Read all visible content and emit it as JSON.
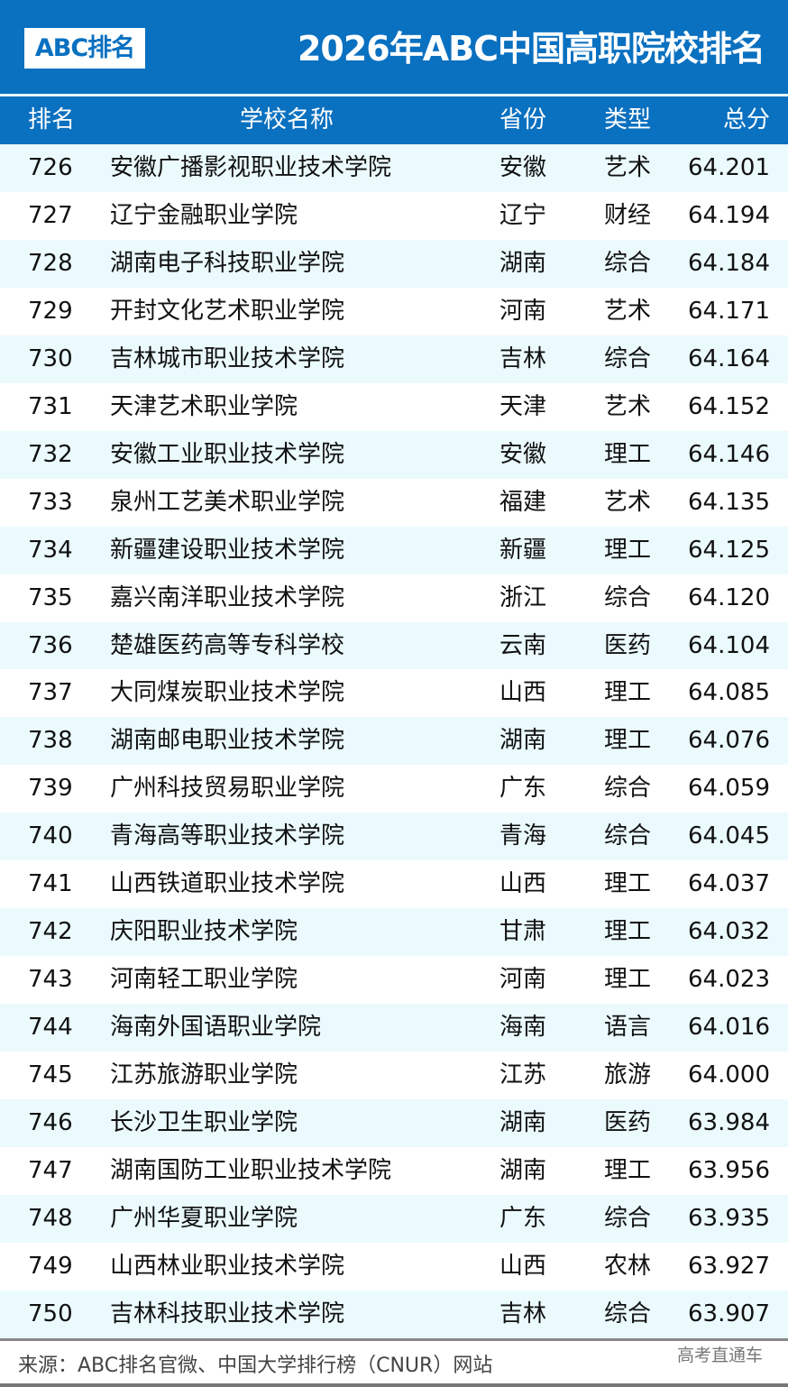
{
  "header": {
    "logo": "ABC排名",
    "title": "2026年ABC中国高职院校排名"
  },
  "columns": [
    "排名",
    "学校名称",
    "省份",
    "类型",
    "总分"
  ],
  "rows": [
    [
      "726",
      "安徽广播影视职业技术学院",
      "安徽",
      "艺术",
      "64.201"
    ],
    [
      "727",
      "辽宁金融职业学院",
      "辽宁",
      "财经",
      "64.194"
    ],
    [
      "728",
      "湖南电子科技职业学院",
      "湖南",
      "综合",
      "64.184"
    ],
    [
      "729",
      "开封文化艺术职业学院",
      "河南",
      "艺术",
      "64.171"
    ],
    [
      "730",
      "吉林城市职业技术学院",
      "吉林",
      "综合",
      "64.164"
    ],
    [
      "731",
      "天津艺术职业学院",
      "天津",
      "艺术",
      "64.152"
    ],
    [
      "732",
      "安徽工业职业技术学院",
      "安徽",
      "理工",
      "64.146"
    ],
    [
      "733",
      "泉州工艺美术职业学院",
      "福建",
      "艺术",
      "64.135"
    ],
    [
      "734",
      "新疆建设职业技术学院",
      "新疆",
      "理工",
      "64.125"
    ],
    [
      "735",
      "嘉兴南洋职业技术学院",
      "浙江",
      "综合",
      "64.120"
    ],
    [
      "736",
      "楚雄医药高等专科学校",
      "云南",
      "医药",
      "64.104"
    ],
    [
      "737",
      "大同煤炭职业技术学院",
      "山西",
      "理工",
      "64.085"
    ],
    [
      "738",
      "湖南邮电职业技术学院",
      "湖南",
      "理工",
      "64.076"
    ],
    [
      "739",
      "广州科技贸易职业学院",
      "广东",
      "综合",
      "64.059"
    ],
    [
      "740",
      "青海高等职业技术学院",
      "青海",
      "综合",
      "64.045"
    ],
    [
      "741",
      "山西铁道职业技术学院",
      "山西",
      "理工",
      "64.037"
    ],
    [
      "742",
      "庆阳职业技术学院",
      "甘肃",
      "理工",
      "64.032"
    ],
    [
      "743",
      "河南轻工职业学院",
      "河南",
      "理工",
      "64.023"
    ],
    [
      "744",
      "海南外国语职业学院",
      "海南",
      "语言",
      "64.016"
    ],
    [
      "745",
      "江苏旅游职业学院",
      "江苏",
      "旅游",
      "64.000"
    ],
    [
      "746",
      "长沙卫生职业学院",
      "湖南",
      "医药",
      "63.984"
    ],
    [
      "747",
      "湖南国防工业职业技术学院",
      "湖南",
      "理工",
      "63.956"
    ],
    [
      "748",
      "广州华夏职业学院",
      "广东",
      "综合",
      "63.935"
    ],
    [
      "749",
      "山西林业职业技术学院",
      "山西",
      "农林",
      "63.927"
    ],
    [
      "750",
      "吉林科技职业技术学院",
      "吉林",
      "综合",
      "63.907"
    ]
  ],
  "footer": {
    "source": "来源：ABC排名官微、中国大学排行榜（CNUR）网站",
    "watermark": "高考直通车"
  },
  "colors": {
    "brand": "#0a70c0",
    "alt_row": "#ebfafd"
  }
}
